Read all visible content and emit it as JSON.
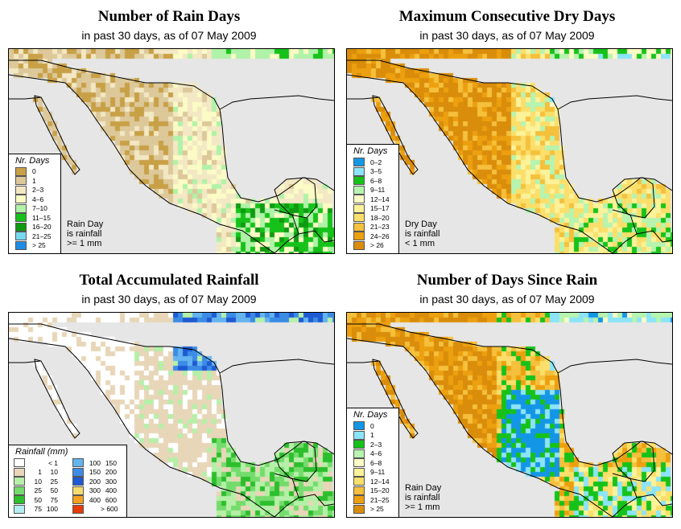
{
  "figure": {
    "panels": [
      {
        "title": "Number of Rain Days",
        "subtitle": "in past 30 days, as of  07 May 2009",
        "legend_title": "Nr. Days",
        "legend": [
          {
            "label": "0",
            "color": "#c8a046"
          },
          {
            "label": "1",
            "color": "#ddc89a"
          },
          {
            "label": "2–3",
            "color": "#f3e8c4"
          },
          {
            "label": "4–6",
            "color": "#fbfbc6"
          },
          {
            "label": "7–10",
            "color": "#b0f2a8"
          },
          {
            "label": "11–15",
            "color": "#16c21a"
          },
          {
            "label": "16–20",
            "color": "#0f9a12"
          },
          {
            "label": "21–25",
            "color": "#78d8f0"
          },
          {
            "label": "> 25",
            "color": "#1e8ce6"
          }
        ],
        "note": [
          "Rain Day",
          "is rainfall",
          ">= 1 mm"
        ]
      },
      {
        "title": "Maximum Consecutive Dry Days",
        "subtitle": "in past 30 days, as of  07 May 2009",
        "legend_title": "Nr. Days",
        "legend": [
          {
            "label": "0–2",
            "color": "#1496e6"
          },
          {
            "label": "3–5",
            "color": "#8ce4f8"
          },
          {
            "label": "6–8",
            "color": "#16c21a"
          },
          {
            "label": "9–11",
            "color": "#b6f4b0"
          },
          {
            "label": "12–14",
            "color": "#fbfbc6"
          },
          {
            "label": "15–17",
            "color": "#fbf29a"
          },
          {
            "label": "18–20",
            "color": "#fbdf6a"
          },
          {
            "label": "21–23",
            "color": "#f5c03c"
          },
          {
            "label": "24–26",
            "color": "#eda00f"
          },
          {
            "label": "> 26",
            "color": "#d98d0a"
          }
        ],
        "note": [
          "Dry Day",
          "is rainfall",
          "< 1 mm"
        ]
      },
      {
        "title": "Total Accumulated Rainfall",
        "subtitle": "in past 30 days, as of  07 May 2009",
        "legend_title": "Rainfall (mm)",
        "legend_left": [
          {
            "low": "",
            "high": "< 1",
            "color": "#ffffff"
          },
          {
            "low": "1",
            "high": "10",
            "color": "#e8d6b8"
          },
          {
            "low": "10",
            "high": "25",
            "color": "#b6f0a8"
          },
          {
            "low": "25",
            "high": "50",
            "color": "#74dc6c"
          },
          {
            "low": "50",
            "high": "75",
            "color": "#2cbe2c"
          },
          {
            "low": "75",
            "high": "100",
            "color": "#b4ecf4"
          }
        ],
        "legend_right": [
          {
            "low": "100",
            "high": "150",
            "color": "#64b4f0"
          },
          {
            "low": "150",
            "high": "200",
            "color": "#3c8ce6"
          },
          {
            "low": "200",
            "high": "300",
            "color": "#1e5ad2"
          },
          {
            "low": "300",
            "high": "400",
            "color": "#f5dc6e"
          },
          {
            "low": "400",
            "high": "600",
            "color": "#f5a01e"
          },
          {
            "low": "",
            "high": "> 600",
            "color": "#e63c0a"
          }
        ]
      },
      {
        "title": "Number of Days Since Rain",
        "subtitle": "in past 30 days, as of  07 May 2009",
        "legend_title": "Nr. Days",
        "legend": [
          {
            "label": "0",
            "color": "#1496e6"
          },
          {
            "label": "1",
            "color": "#8ce4f8"
          },
          {
            "label": "2–3",
            "color": "#16c21a"
          },
          {
            "label": "4–6",
            "color": "#b6f4b0"
          },
          {
            "label": "6–8",
            "color": "#fbfbc6"
          },
          {
            "label": "9–11",
            "color": "#fbf29a"
          },
          {
            "label": "12–14",
            "color": "#fbdf6a"
          },
          {
            "label": "15–20",
            "color": "#f5c03c"
          },
          {
            "label": "21–25",
            "color": "#eda00f"
          },
          {
            "label": "> 25",
            "color": "#d98d0a"
          }
        ],
        "note": [
          "Rain Day",
          "is rainfall",
          ">= 1 mm"
        ]
      }
    ],
    "map_colors": {
      "ocean": "#e6e6e6",
      "border": "#000000"
    }
  }
}
